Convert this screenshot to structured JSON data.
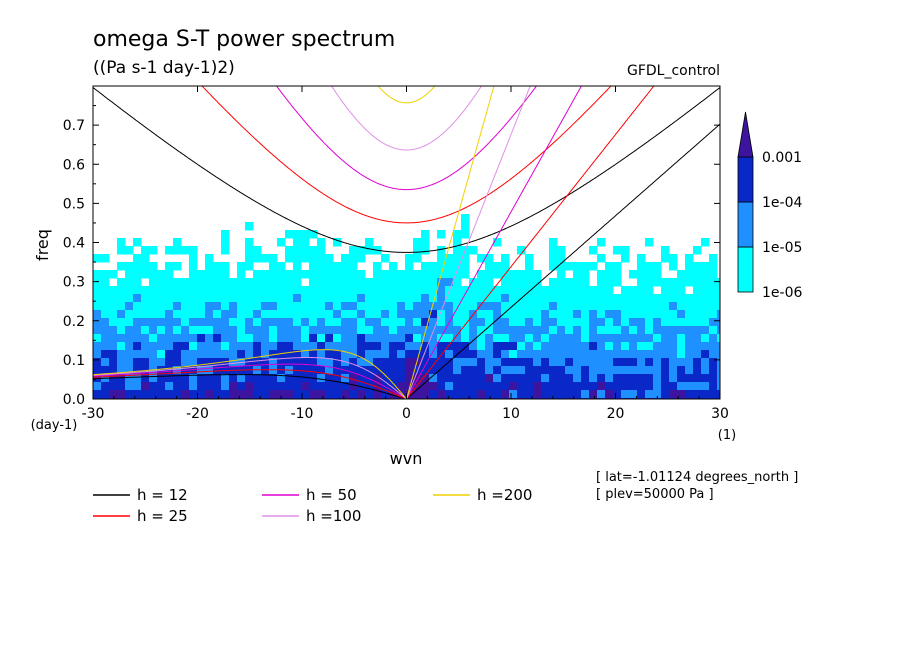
{
  "header": {
    "title": "omega S-T power spectrum",
    "units": "((Pa s-1 day-1)2)",
    "dataset": "GFDL_control"
  },
  "footer": {
    "lat_note": "[ lat=-1.01124 degrees_north ]",
    "plev_note": "[ plev=50000 Pa ]"
  },
  "chart_data": {
    "type": "heatmap",
    "title": "omega S-T power spectrum",
    "subtitle": "((Pa s-1 day-1)2)",
    "xlabel": "wvn",
    "ylabel": "freq",
    "x_unit_label": "(1)",
    "y_unit_label": "(day-1)",
    "xlim": [
      -30,
      30
    ],
    "ylim": [
      0,
      0.8
    ],
    "x_ticks": [
      -30,
      -20,
      -10,
      0,
      10,
      20,
      30
    ],
    "x_tick_labels": [
      "-30",
      "-20",
      "-10",
      "0",
      "10",
      "20",
      "30"
    ],
    "y_ticks": [
      0.0,
      0.1,
      0.2,
      0.3,
      0.4,
      0.5,
      0.6,
      0.7
    ],
    "y_tick_labels": [
      "0.0",
      "0.1",
      "0.2",
      "0.3",
      "0.4",
      "0.5",
      "0.6",
      "0.7"
    ],
    "colorbar": {
      "levels": [
        "1e-06",
        "1e-05",
        "1e-04",
        "0.001"
      ],
      "colors": [
        "#00ffff",
        "#1e90ff",
        "#0a28c8",
        "#3c14a0"
      ]
    },
    "series": [
      {
        "name": "h = 12",
        "depth": 12,
        "color": "#000000"
      },
      {
        "name": "h = 25",
        "depth": 25,
        "color": "#ff0000"
      },
      {
        "name": "h = 50",
        "depth": 50,
        "color": "#e000d0"
      },
      {
        "name": "h =100",
        "depth": 100,
        "color": "#e090e8"
      },
      {
        "name": "h =200",
        "depth": 200,
        "color": "#f0d000"
      }
    ],
    "legend": [
      {
        "label": "h = 12",
        "color": "#000000"
      },
      {
        "label": "h = 25",
        "color": "#ff0000"
      },
      {
        "label": "h = 50",
        "color": "#e000d0"
      },
      {
        "label": "h =100",
        "color": "#e090e8"
      },
      {
        "label": "h =200",
        "color": "#f0d000"
      }
    ]
  }
}
